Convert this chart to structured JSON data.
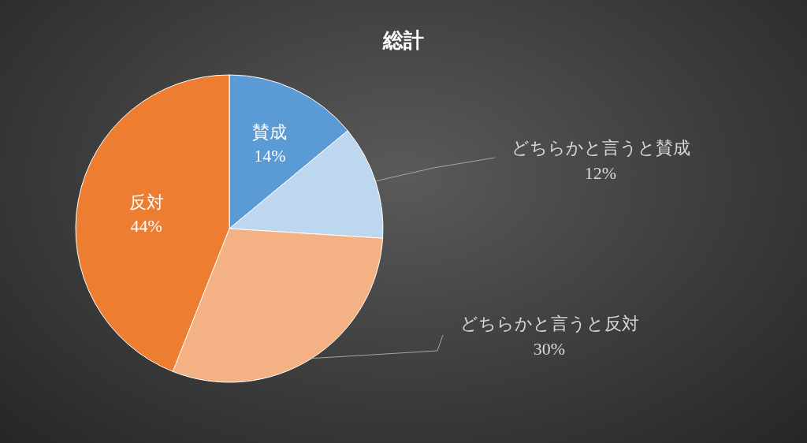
{
  "chart_data": {
    "type": "pie",
    "title": "総計",
    "categories": [
      "賛成",
      "どちらかと言うと賛成",
      "どちらかと言うと反対",
      "反対"
    ],
    "values": [
      14,
      12,
      30,
      44
    ],
    "colors": [
      "#5b9bd5",
      "#bdd7ee",
      "#f4b183",
      "#ed7d31"
    ],
    "value_labels": [
      "14%",
      "12%",
      "30%",
      "44%"
    ]
  }
}
